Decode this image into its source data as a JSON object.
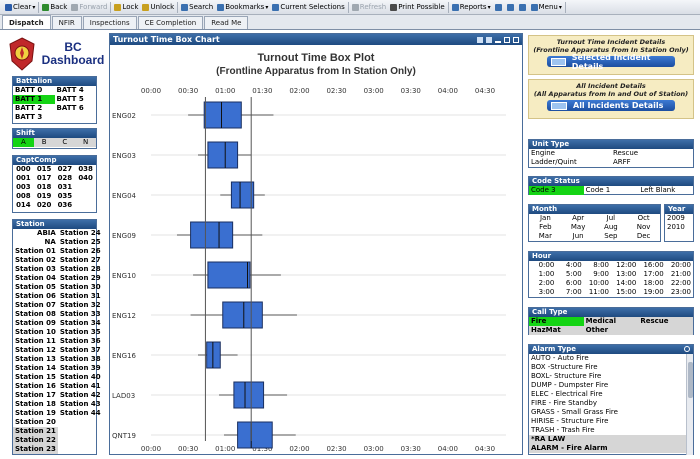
{
  "toolbar": [
    {
      "label": "Clear",
      "icon": "clear-icon",
      "color": "#2a5caa",
      "dropdown": true
    },
    {
      "label": "Back",
      "icon": "back-icon",
      "color": "#2e8b2e"
    },
    {
      "label": "Forward",
      "icon": "forward-icon",
      "color": "#a0a8b0",
      "disabled": true
    },
    {
      "label": "Lock",
      "icon": "lock-icon",
      "color": "#c8a020"
    },
    {
      "label": "Unlock",
      "icon": "unlock-icon",
      "color": "#c8a020"
    },
    {
      "label": "Search",
      "icon": "search-icon",
      "color": "#3a70b0"
    },
    {
      "label": "Bookmarks",
      "icon": "bookmark-icon",
      "color": "#3a70b0",
      "dropdown": true
    },
    {
      "label": "Current Selections",
      "icon": "selections-icon",
      "color": "#3a70b0"
    },
    {
      "label": "Refresh",
      "icon": "refresh-icon",
      "color": "#a0a8b0",
      "disabled": true
    },
    {
      "label": "Print Possible",
      "icon": "print-icon",
      "color": "#4a4a4a"
    },
    {
      "label": "Reports",
      "icon": "reports-icon",
      "color": "#3a70b0",
      "dropdown": true
    },
    {
      "label": "",
      "icon": "sheet-icon",
      "color": "#3a70b0"
    },
    {
      "label": "",
      "icon": "help-icon",
      "color": "#3a70b0"
    },
    {
      "label": "",
      "icon": "user-icon",
      "color": "#3a70b0"
    },
    {
      "label": "Menu",
      "icon": "menu-icon",
      "color": "#3a70b0",
      "dropdown": true
    }
  ],
  "tabs": [
    "Dispatch",
    "NFIR",
    "Inspections",
    "CE Completion",
    "Read Me"
  ],
  "logo": {
    "line1": "BC",
    "line2": "Dashboard"
  },
  "battalion": {
    "title": "Battalion",
    "items": [
      [
        "BATT 0",
        "BATT 4"
      ],
      [
        "BATT 1",
        "BATT 5"
      ],
      [
        "BATT 2",
        "BATT 6"
      ],
      [
        "BATT 3",
        ""
      ]
    ],
    "selected": [
      "BATT 1"
    ]
  },
  "shift": {
    "title": "Shift",
    "items": [
      "A",
      "B",
      "C",
      "N"
    ],
    "selected": [
      "A"
    ]
  },
  "captcomp": {
    "title": "CaptComp",
    "rows": [
      [
        "000",
        "015",
        "027",
        "038"
      ],
      [
        "001",
        "017",
        "028",
        "040"
      ],
      [
        "003",
        "018",
        "031",
        ""
      ],
      [
        "008",
        "019",
        "035",
        ""
      ],
      [
        "014",
        "020",
        "036",
        ""
      ]
    ]
  },
  "station": {
    "title": "Station",
    "rows": [
      [
        "ABIA",
        "Station 24"
      ],
      [
        "NA",
        "Station 25"
      ],
      [
        "Station 01",
        "Station 26"
      ],
      [
        "Station 02",
        "Station 27"
      ],
      [
        "Station 03",
        "Station 28"
      ],
      [
        "Station 04",
        "Station 29"
      ],
      [
        "Station 05",
        "Station 30"
      ],
      [
        "Station 06",
        "Station 31"
      ],
      [
        "Station 07",
        "Station 32"
      ],
      [
        "Station 08",
        "Station 33"
      ],
      [
        "Station 09",
        "Station 34"
      ],
      [
        "Station 10",
        "Station 35"
      ],
      [
        "Station 11",
        "Station 36"
      ],
      [
        "Station 12",
        "Station 37"
      ],
      [
        "Station 13",
        "Station 38"
      ],
      [
        "Station 14",
        "Station 39"
      ],
      [
        "Station 15",
        "Station 40"
      ],
      [
        "Station 16",
        "Station 41"
      ],
      [
        "Station 17",
        "Station 42"
      ],
      [
        "Station 18",
        "Station 43"
      ],
      [
        "Station 19",
        "Station 44"
      ],
      [
        "Station 20",
        ""
      ],
      [
        "Station 21",
        ""
      ],
      [
        "Station 22",
        ""
      ],
      [
        "Station 23",
        ""
      ]
    ]
  },
  "chart_panel_title": "Turnout Time Box Chart",
  "chart_data": {
    "type": "box",
    "title": "Turnout Time Box Plot",
    "subtitle": "(Frontline Apparatus from In Station Only)",
    "x_ticks": [
      "00:00",
      "00:30",
      "01:00",
      "01:30",
      "02:00",
      "02:30",
      "03:00",
      "03:30",
      "04:00",
      "04:30"
    ],
    "x_range_seconds": [
      0,
      270
    ],
    "reference_lines_seconds": [
      44,
      81
    ],
    "units": [
      "ENG02",
      "ENG03",
      "ENG04",
      "ENG09",
      "ENG10",
      "ENG12",
      "ENG16",
      "LAD03",
      "QNT19"
    ],
    "series": [
      {
        "unit": "ENG02",
        "whisker_low": 30,
        "q1": 43,
        "median": 57,
        "q3": 73,
        "whisker_high": 99
      },
      {
        "unit": "ENG03",
        "whisker_low": 38,
        "q1": 46,
        "median": 60,
        "q3": 70,
        "whisker_high": 81
      },
      {
        "unit": "ENG04",
        "whisker_low": 56,
        "q1": 65,
        "median": 72,
        "q3": 83,
        "whisker_high": 92
      },
      {
        "unit": "ENG09",
        "whisker_low": 21,
        "q1": 32,
        "median": 55,
        "q3": 66,
        "whisker_high": 90
      },
      {
        "unit": "ENG10",
        "whisker_low": 34,
        "q1": 46,
        "median": 78,
        "q3": 80,
        "whisker_high": 105
      },
      {
        "unit": "ENG12",
        "whisker_low": 32,
        "q1": 58,
        "median": 75,
        "q3": 90,
        "whisker_high": 118
      },
      {
        "unit": "ENG16",
        "whisker_low": 38,
        "q1": 45,
        "median": 50,
        "q3": 56,
        "whisker_high": 70
      },
      {
        "unit": "LAD03",
        "whisker_low": 55,
        "q1": 67,
        "median": 76,
        "q3": 91,
        "whisker_high": 110
      },
      {
        "unit": "QNT19",
        "whisker_low": 59,
        "q1": 70,
        "median": 81,
        "q3": 98,
        "whisker_high": 117
      }
    ],
    "box_color": "#3a6fd0"
  },
  "details": {
    "frontline": {
      "title": "Turnout Time Incident Details",
      "subtitle": "(Frontline Apparatus from In Station Only)",
      "button": "Selected Incident Details"
    },
    "all": {
      "title": "All Incident Details",
      "subtitle": "(All Apparatus from In and Out of Station)",
      "button": "All Incidents Details"
    }
  },
  "unit_type": {
    "title": "Unit Type",
    "rows": [
      [
        "Engine",
        "Rescue"
      ],
      [
        "Ladder/Quint",
        "ARFF"
      ]
    ]
  },
  "code_status": {
    "title": "Code Status",
    "items": [
      "Code 3",
      "Code 1",
      "Left Blank"
    ],
    "selected": [
      "Code 3"
    ]
  },
  "month": {
    "title": "Month",
    "rows": [
      [
        "Jan",
        "Apr",
        "Jul",
        "Oct"
      ],
      [
        "Feb",
        "May",
        "Aug",
        "Nov"
      ],
      [
        "Mar",
        "Jun",
        "Sep",
        "Dec"
      ]
    ]
  },
  "year": {
    "title": "Year",
    "items": [
      "2009",
      "2010"
    ]
  },
  "hour": {
    "title": "Hour",
    "rows": [
      [
        "0:00",
        "4:00",
        "8:00",
        "12:00",
        "16:00",
        "20:00"
      ],
      [
        "1:00",
        "5:00",
        "9:00",
        "13:00",
        "17:00",
        "21:00"
      ],
      [
        "2:00",
        "6:00",
        "10:00",
        "14:00",
        "18:00",
        "22:00"
      ],
      [
        "3:00",
        "7:00",
        "11:00",
        "15:00",
        "19:00",
        "23:00"
      ]
    ]
  },
  "call_type": {
    "title": "Call Type",
    "rows": [
      [
        "Fire",
        "Medical",
        "Rescue"
      ],
      [
        "HazMat",
        "Other",
        ""
      ]
    ],
    "selected": [
      "Fire"
    ]
  },
  "alarm_type": {
    "title": "Alarm Type",
    "items": [
      "AUTO - Auto Fire",
      "BOX -Structure Fire",
      "BOXL- Structure Fire",
      "DUMP - Dumpster Fire",
      "ELEC - Electrical Fire",
      "FIRE - Fire Standby",
      "GRASS - Small Grass Fire",
      "HIRISE - Structure Fire",
      "TRASH - Trash Fire",
      "*RA LAW",
      "ALARM - Fire Alarm"
    ]
  }
}
